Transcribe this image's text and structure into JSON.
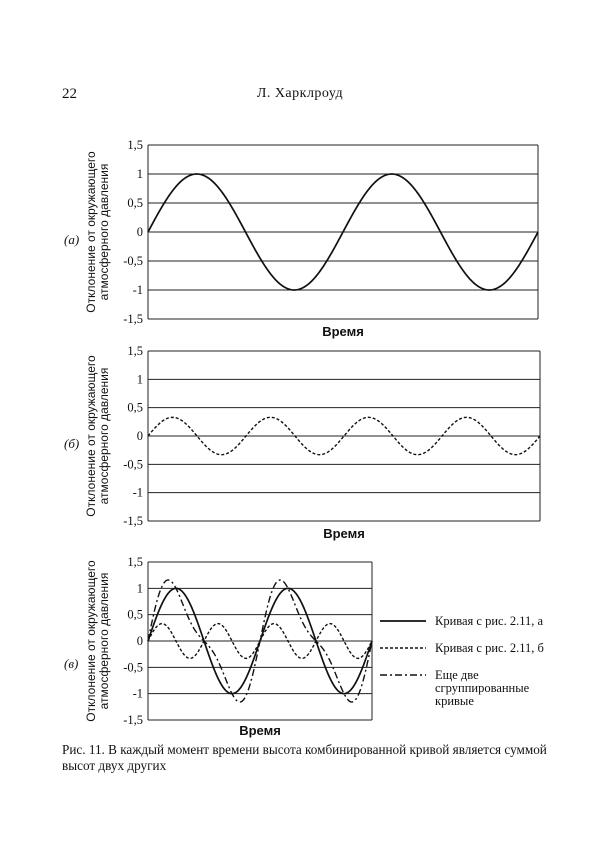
{
  "page": {
    "number": "22",
    "running_head": "Л. Харклроуд",
    "caption": "Рис. 11. В каждый момент времени высота комбинированной кривой является суммой высот двух других"
  },
  "chart_data": [
    {
      "panel": "(а)",
      "type": "line",
      "xlabel": "Время",
      "ylabel": "Отклонение от окружающего атмосферного давления",
      "yticks": [
        "1,5",
        "1",
        "0,5",
        "0",
        "-0,5",
        "-1",
        "-1,5"
      ],
      "ylim": [
        -1.5,
        1.5
      ],
      "grid": "horizontal",
      "series": [
        {
          "style": "solid",
          "amplitude": 1,
          "cycles": 2
        }
      ]
    },
    {
      "panel": "(б)",
      "type": "line",
      "xlabel": "Время",
      "ylabel": "Отклонение от окружающего атмосферного давления",
      "yticks": [
        "1,5",
        "1",
        "0,5",
        "0",
        "-0,5",
        "-1",
        "-1,5"
      ],
      "ylim": [
        -1.5,
        1.5
      ],
      "grid": "horizontal",
      "series": [
        {
          "style": "dashed",
          "amplitude": 0.33,
          "cycles": 4
        }
      ]
    },
    {
      "panel": "(в)",
      "type": "line",
      "xlabel": "Время",
      "ylabel": "Отклонение от окружающего атмосферного давления",
      "yticks": [
        "1,5",
        "1",
        "0,5",
        "0",
        "-0,5",
        "-1",
        "-1,5"
      ],
      "ylim": [
        -1.5,
        1.5
      ],
      "grid": "horizontal",
      "legend_position": "right",
      "series": [
        {
          "name": "Кривая с рис. 2.11, а",
          "style": "solid",
          "amplitude": 1,
          "cycles": 2
        },
        {
          "name": "Кривая с рис. 2.11, б",
          "style": "dashed",
          "amplitude": 0.33,
          "cycles": 4
        },
        {
          "name": "Еще две сгруппированные кривые",
          "style": "dashdot",
          "sum_of_others": true
        }
      ]
    }
  ]
}
